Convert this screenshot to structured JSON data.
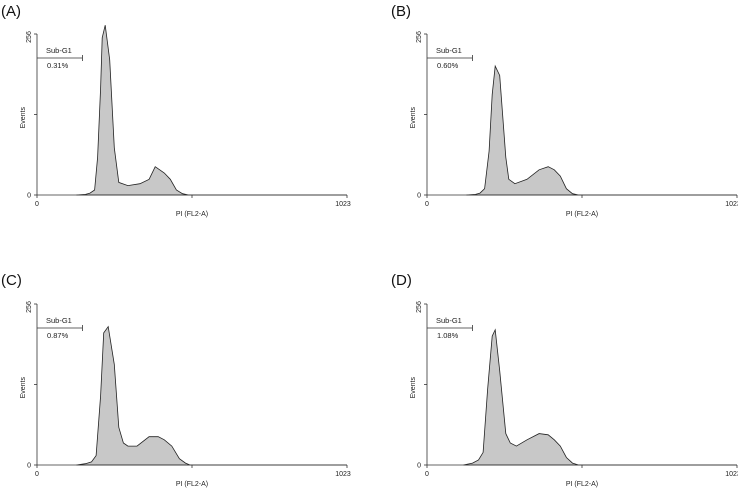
{
  "chart_data": [
    {
      "type": "area",
      "panel_label": "(A)",
      "xlabel": "PI (FL2-A)",
      "ylabel": "Events",
      "xlim": [
        0,
        1023
      ],
      "ylim": [
        0,
        256
      ],
      "x_ticks": [
        "0",
        "1023"
      ],
      "y_ticks": [
        "0",
        "256"
      ],
      "gate": {
        "name": "Sub-G1",
        "value": "0.31%",
        "range": [
          0,
          150
        ]
      },
      "histogram": {
        "x": [
          130,
          160,
          175,
          190,
          200,
          210,
          215,
          225,
          240,
          255,
          270,
          300,
          340,
          370,
          390,
          405,
          420,
          440,
          460,
          480,
          500,
          1023
        ],
        "y": [
          0,
          1,
          3,
          8,
          60,
          170,
          250,
          270,
          215,
          75,
          20,
          15,
          18,
          25,
          45,
          40,
          35,
          25,
          8,
          2,
          0,
          0
        ]
      }
    },
    {
      "type": "area",
      "panel_label": "(B)",
      "xlabel": "PI (FL2-A)",
      "ylabel": "Events",
      "xlim": [
        0,
        1023
      ],
      "ylim": [
        0,
        256
      ],
      "x_ticks": [
        "0",
        "1023"
      ],
      "y_ticks": [
        "0",
        "256"
      ],
      "gate": {
        "name": "Sub-G1",
        "value": "0.60%",
        "range": [
          0,
          150
        ]
      },
      "histogram": {
        "x": [
          130,
          160,
          175,
          190,
          205,
          215,
          225,
          240,
          260,
          270,
          290,
          330,
          370,
          400,
          420,
          440,
          460,
          480,
          500,
          1023
        ],
        "y": [
          0,
          1,
          3,
          10,
          70,
          160,
          205,
          190,
          60,
          25,
          18,
          25,
          40,
          45,
          40,
          30,
          10,
          2,
          0,
          0
        ]
      }
    },
    {
      "type": "area",
      "panel_label": "(C)",
      "xlabel": "PI (FL2-A)",
      "ylabel": "Events",
      "xlim": [
        0,
        1023
      ],
      "ylim": [
        0,
        256
      ],
      "x_ticks": [
        "0",
        "1023"
      ],
      "y_ticks": [
        "0",
        "256"
      ],
      "gate": {
        "name": "Sub-G1",
        "value": "0.87%",
        "range": [
          0,
          150
        ]
      },
      "histogram": {
        "x": [
          130,
          160,
          180,
          195,
          210,
          220,
          235,
          255,
          270,
          285,
          300,
          330,
          370,
          400,
          420,
          445,
          470,
          490,
          505,
          1023
        ],
        "y": [
          0,
          2,
          5,
          15,
          110,
          210,
          220,
          160,
          60,
          35,
          30,
          30,
          45,
          45,
          40,
          30,
          10,
          3,
          0,
          0
        ]
      }
    },
    {
      "type": "area",
      "panel_label": "(D)",
      "xlabel": "PI (FL2-A)",
      "ylabel": "Events",
      "xlim": [
        0,
        1023
      ],
      "ylim": [
        0,
        256
      ],
      "x_ticks": [
        "0",
        "1023"
      ],
      "y_ticks": [
        "0",
        "256"
      ],
      "gate": {
        "name": "Sub-G1",
        "value": "1.08%",
        "range": [
          0,
          150
        ]
      },
      "histogram": {
        "x": [
          120,
          150,
          170,
          185,
          200,
          215,
          225,
          240,
          260,
          275,
          295,
          330,
          370,
          400,
          420,
          440,
          460,
          480,
          500,
          1023
        ],
        "y": [
          0,
          3,
          8,
          20,
          120,
          205,
          215,
          150,
          50,
          35,
          30,
          40,
          50,
          48,
          40,
          30,
          12,
          3,
          0,
          0
        ]
      }
    }
  ]
}
